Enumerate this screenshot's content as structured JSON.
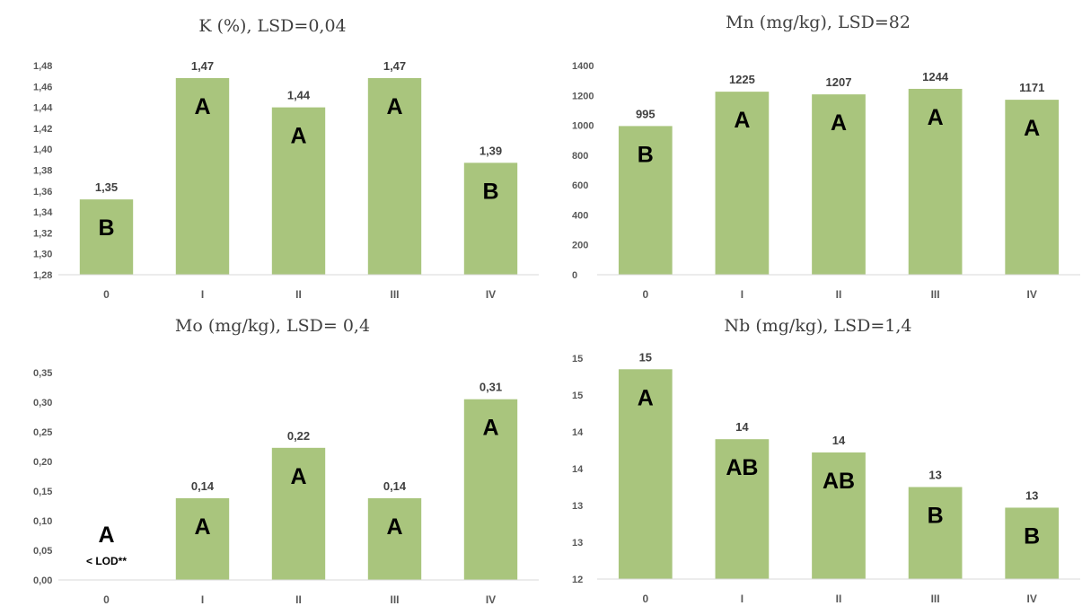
{
  "colors": {
    "bar": "#a9c57d",
    "axis": "#d9d9d9",
    "text": "#404040"
  },
  "chart_data": [
    {
      "type": "bar",
      "title": "K (%), LSD=0,04",
      "categories": [
        "0",
        "I",
        "II",
        "III",
        "IV"
      ],
      "values": [
        1.352,
        1.468,
        1.44,
        1.468,
        1.387
      ],
      "value_labels": [
        "1,35",
        "1,47",
        "1,44",
        "1,47",
        "1,39"
      ],
      "group_letters": [
        "B",
        "A",
        "A",
        "A",
        "B"
      ],
      "ylim": [
        1.28,
        1.48
      ],
      "yticks": [
        1.28,
        1.3,
        1.32,
        1.34,
        1.36,
        1.38,
        1.4,
        1.42,
        1.44,
        1.46,
        1.48
      ],
      "ytick_labels": [
        "1,28",
        "1,30",
        "1,32",
        "1,34",
        "1,36",
        "1,38",
        "1,40",
        "1,42",
        "1,44",
        "1,46",
        "1,48"
      ],
      "grid": false
    },
    {
      "type": "bar",
      "title": "Mn (mg/kg), LSD=82",
      "categories": [
        "0",
        "I",
        "II",
        "III",
        "IV"
      ],
      "values": [
        995,
        1225,
        1207,
        1244,
        1171
      ],
      "value_labels": [
        "995",
        "1225",
        "1207",
        "1244",
        "1171"
      ],
      "group_letters": [
        "B",
        "A",
        "A",
        "A",
        "A"
      ],
      "ylim": [
        0,
        1400
      ],
      "yticks": [
        0,
        200,
        400,
        600,
        800,
        1000,
        1200,
        1400
      ],
      "ytick_labels": [
        "0",
        "200",
        "400",
        "600",
        "800",
        "1000",
        "1200",
        "1400"
      ],
      "grid": false
    },
    {
      "type": "bar",
      "title": "Mo (mg/kg), LSD= 0,4",
      "categories": [
        "0",
        "I",
        "II",
        "III",
        "IV"
      ],
      "values": [
        0,
        0.138,
        0.223,
        0.138,
        0.305
      ],
      "value_labels": [
        "",
        "0,14",
        "0,22",
        "0,14",
        "0,31"
      ],
      "group_letters": [
        "A",
        "A",
        "A",
        "A",
        "A"
      ],
      "annotation": "< LOD**",
      "ylim": [
        0,
        0.35
      ],
      "yticks": [
        0,
        0.05,
        0.1,
        0.15,
        0.2,
        0.25,
        0.3,
        0.35
      ],
      "ytick_labels": [
        "0,00",
        "0,05",
        "0,10",
        "0,15",
        "0,20",
        "0,25",
        "0,30",
        "0,35"
      ],
      "grid": false
    },
    {
      "type": "bar",
      "title": "Nb (mg/kg), LSD=1,4",
      "categories": [
        "0",
        "I",
        "II",
        "III",
        "IV"
      ],
      "values": [
        14.85,
        13.9,
        13.72,
        13.25,
        12.97
      ],
      "value_labels": [
        "15",
        "14",
        "14",
        "13",
        "13"
      ],
      "group_letters": [
        "A",
        "AB",
        "AB",
        "B",
        "B"
      ],
      "ylim": [
        12,
        15
      ],
      "yticks": [
        12,
        12.5,
        13,
        13.5,
        14,
        14.5,
        15
      ],
      "ytick_labels": [
        "12",
        "13",
        "13",
        "14",
        "14",
        "15",
        "15"
      ],
      "grid": false
    }
  ]
}
